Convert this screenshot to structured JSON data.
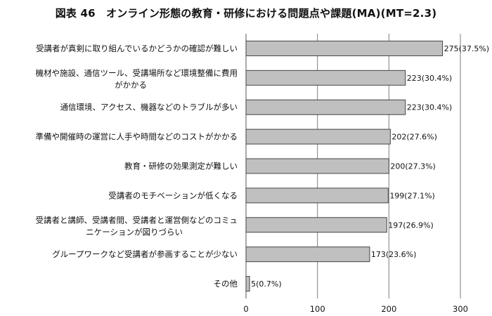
{
  "chart_data": {
    "type": "bar",
    "orientation": "horizontal",
    "title": "図表 46　オンライン形態の教育・研修における問題点や課題(MA)(MT=2.3)",
    "categories": [
      [
        "受講者が真剣に取り組んでいるかどうかの確認が難しい"
      ],
      [
        "機材や施設、通信ツール、受講場所など環境整備に費用",
        "がかかる"
      ],
      [
        "通信環境、アクセス、機器などのトラブルが多い"
      ],
      [
        "準備や開催時の運営に人手や時間などのコストがかかる"
      ],
      [
        "教育・研修の効果測定が難しい"
      ],
      [
        "受講者のモチベーションが低くなる"
      ],
      [
        "受講者と講師、受講者間、受講者と運営側などのコミュ",
        "ニケーションが図りづらい"
      ],
      [
        "グループワークなど受講者が参画することが少ない"
      ],
      [
        "その他"
      ]
    ],
    "values": [
      275,
      223,
      223,
      202,
      200,
      199,
      197,
      173,
      5
    ],
    "value_labels": [
      "275(37.5%)",
      "223(30.4%)",
      "223(30.4%)",
      "202(27.6%)",
      "200(27.3%)",
      "199(27.1%)",
      "197(26.9%)",
      "173(23.6%)",
      "5(0.7%)"
    ],
    "xlim": [
      0,
      300
    ],
    "xticks": [
      0,
      100,
      200,
      300
    ],
    "xlabel": "",
    "ylabel": "",
    "grid": "vertical",
    "legend": "none",
    "colors": {
      "bar_fill": "#c0c0c0",
      "bar_stroke": "#444444",
      "grid": "#7f7f7f",
      "axis": "#555555"
    }
  }
}
